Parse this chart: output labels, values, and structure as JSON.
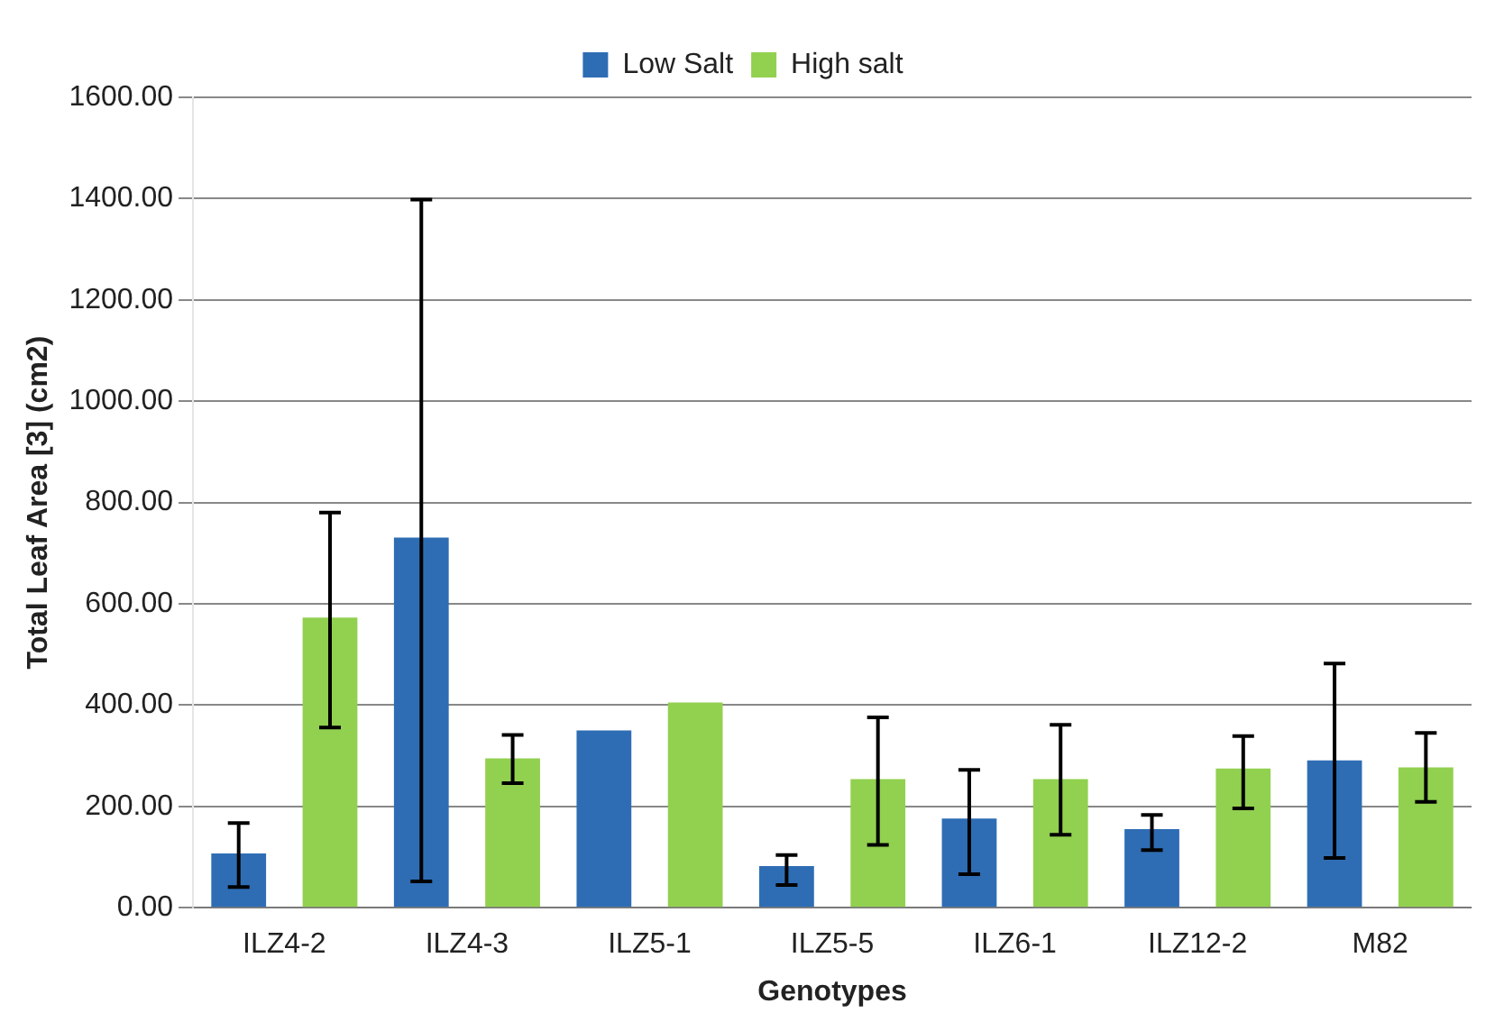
{
  "chart_data": {
    "type": "bar",
    "xlabel": "Genotypes",
    "ylabel": "Total Leaf Area [3] (cm2)",
    "categories": [
      "ILZ4-2",
      "ILZ4-3",
      "ILZ5-1",
      "ILZ5-5",
      "ILZ6-1",
      "ILZ12-2",
      "M82"
    ],
    "series": [
      {
        "name": "Low Salt",
        "color": "#2e6db4",
        "values": [
          107,
          731,
          350,
          82,
          176,
          155,
          291
        ],
        "errors": [
          [
            41,
            167
          ],
          [
            52,
            1398
          ],
          null,
          [
            45,
            104
          ],
          [
            66,
            272
          ],
          [
            114,
            183
          ],
          [
            98,
            482
          ]
        ]
      },
      {
        "name": "High salt",
        "color": "#92d050",
        "values": [
          573,
          295,
          405,
          254,
          254,
          275,
          277
        ],
        "errors": [
          [
            356,
            780
          ],
          [
            246,
            341
          ],
          null,
          [
            124,
            376
          ],
          [
            144,
            361
          ],
          [
            196,
            339
          ],
          [
            209,
            345
          ]
        ]
      }
    ],
    "ylim": [
      0,
      1600
    ],
    "yticks": [
      {
        "value": 0,
        "label": "0.00"
      },
      {
        "value": 200,
        "label": "200.00"
      },
      {
        "value": 400,
        "label": "400.00"
      },
      {
        "value": 600,
        "label": "600.00"
      },
      {
        "value": 800,
        "label": "800.00"
      },
      {
        "value": 1000,
        "label": "1000.00"
      },
      {
        "value": 1200,
        "label": "1200.00"
      },
      {
        "value": 1400,
        "label": "1400.00"
      },
      {
        "value": 1600,
        "label": "1600.00"
      }
    ],
    "grid": "y",
    "legend": "top"
  }
}
